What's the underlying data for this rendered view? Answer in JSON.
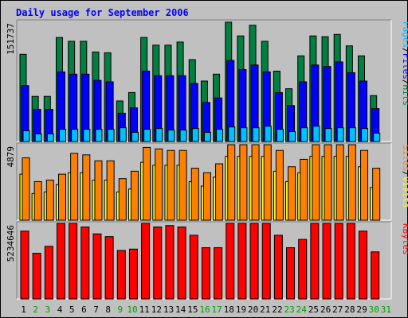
{
  "chart_data": {
    "type": "bar",
    "title": "Daily usage for September 2006",
    "categories": [
      "1",
      "2",
      "3",
      "4",
      "5",
      "6",
      "7",
      "8",
      "9",
      "10",
      "11",
      "12",
      "13",
      "14",
      "15",
      "16",
      "17",
      "18",
      "19",
      "20",
      "21",
      "22",
      "23",
      "24",
      "25",
      "26",
      "27",
      "28",
      "29",
      "30",
      "31"
    ],
    "weekend_days": [
      "2",
      "3",
      "9",
      "10",
      "16",
      "17",
      "23",
      "24",
      "30",
      "31"
    ],
    "panels": [
      {
        "id": "hits-files-pages",
        "ymax": 151737,
        "ymax_label": "151737",
        "legend": [
          "Pages",
          "/",
          "Files",
          "/",
          "Hits"
        ],
        "legend_colors": [
          "#00c0ff",
          "#000000",
          "#0000ff",
          "#000000",
          "#008040"
        ],
        "series": [
          {
            "name": "Hits",
            "color": "#008040",
            "values": [
              114000,
              59000,
              59000,
              136000,
              131000,
              131000,
              117000,
              116000,
              53000,
              64000,
              136000,
              126000,
              126000,
              130000,
              107000,
              79000,
              88000,
              156000,
              138000,
              152000,
              131000,
              92000,
              69000,
              112000,
              138000,
              137000,
              140000,
              125000,
              112000,
              60000,
              null
            ]
          },
          {
            "name": "Files",
            "color": "#0000ff",
            "values": [
              73000,
              42000,
              42000,
              91000,
              88000,
              88000,
              80000,
              78000,
              37000,
              44000,
              92000,
              86000,
              86000,
              86000,
              76000,
              51000,
              57000,
              106000,
              94000,
              100000,
              91000,
              64000,
              47000,
              78000,
              100000,
              98000,
              104000,
              90000,
              79000,
              43000,
              null
            ]
          },
          {
            "name": "Pages",
            "color": "#00c0ff",
            "values": [
              14000,
              10000,
              10000,
              16000,
              16000,
              16000,
              16000,
              16000,
              18000,
              12000,
              16000,
              17000,
              15000,
              15000,
              17000,
              12000,
              16000,
              19000,
              18000,
              18000,
              20000,
              16000,
              13000,
              18000,
              20000,
              17000,
              18000,
              18000,
              17000,
              11000,
              null
            ]
          }
        ]
      },
      {
        "id": "sites-visits",
        "ymax": 4879,
        "ymax_label": "4879",
        "legend": [
          "Sites",
          "/",
          "Visits"
        ],
        "legend_colors": [
          "#ff8000",
          "#000000",
          "#ffff00"
        ],
        "series": [
          {
            "name": "Visits",
            "color": "#ffff00",
            "values": [
              3100,
              1800,
              1900,
              2400,
              3200,
              3200,
              2700,
              2700,
              1900,
              2100,
              3900,
              3700,
              3700,
              3700,
              2600,
              2300,
              2900,
              4300,
              4300,
              4300,
              4300,
              3300,
              2600,
              3200,
              4300,
              4300,
              4300,
              4300,
              3600,
              2200,
              null
            ]
          },
          {
            "name": "Sites",
            "color": "#ff8000",
            "values": [
              4200,
              2600,
              2700,
              3100,
              4500,
              4400,
              4000,
              4000,
              2800,
              3300,
              4900,
              4800,
              4700,
              4700,
              3500,
              3200,
              3800,
              5100,
              5400,
              5200,
              5200,
              4700,
              3600,
              4100,
              5400,
              5400,
              5400,
              5200,
              4700,
              3500,
              null
            ]
          }
        ]
      },
      {
        "id": "kbytes",
        "ymax": 5234646,
        "ymax_label": "5234646",
        "legend": [
          "KBytes"
        ],
        "legend_colors": [
          "#ff0000"
        ],
        "series": [
          {
            "name": "KBytes",
            "color": "#ff0000",
            "values": [
              4900000,
              3300000,
              3800000,
              5500000,
              5500000,
              5200000,
              4700000,
              4500000,
              3500000,
              3600000,
              5600000,
              5200000,
              5300000,
              5200000,
              4600000,
              3700000,
              3700000,
              6400000,
              6300000,
              6400000,
              6600000,
              4600000,
              3700000,
              4300000,
              6500000,
              5700000,
              5900000,
              5900000,
              4900000,
              3400000,
              null
            ]
          }
        ]
      }
    ]
  }
}
